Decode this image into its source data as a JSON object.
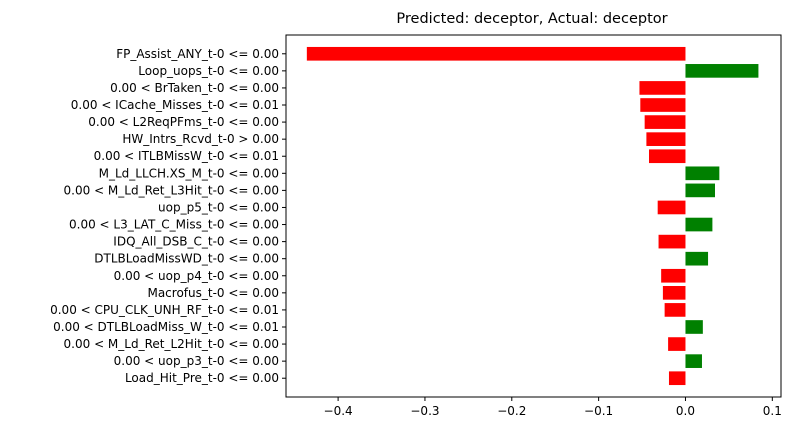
{
  "chart_data": {
    "type": "bar",
    "orientation": "horizontal",
    "title": "Predicted: deceptor, Actual: deceptor",
    "xlabel": "",
    "ylabel": "",
    "xlim": [
      -0.46,
      0.11
    ],
    "xticks": [
      -0.4,
      -0.3,
      -0.2,
      -0.1,
      0.0,
      0.1
    ],
    "xtick_labels": [
      "−0.4",
      "−0.3",
      "−0.2",
      "−0.1",
      "0.0",
      "0.1"
    ],
    "grid": false,
    "colors": {
      "negative": "#ff0000",
      "positive": "#008000"
    },
    "categories": [
      "FP_Assist_ANY_t-0 <= 0.00",
      "Loop_uops_t-0 <= 0.00",
      "0.00 < BrTaken_t-0 <= 0.00",
      "0.00 < ICache_Misses_t-0 <= 0.01",
      "0.00 < L2ReqPFms_t-0 <= 0.00",
      "HW_Intrs_Rcvd_t-0 > 0.00",
      "0.00 < ITLBMissW_t-0 <= 0.01",
      "M_Ld_LLCH.XS_M_t-0 <= 0.00",
      "0.00 < M_Ld_Ret_L3Hit_t-0 <= 0.00",
      "uop_p5_t-0 <= 0.00",
      "0.00 < L3_LAT_C_Miss_t-0 <= 0.00",
      "IDQ_All_DSB_C_t-0 <= 0.00",
      "DTLBLoadMissWD_t-0 <= 0.00",
      "0.00 < uop_p4_t-0 <= 0.00",
      "Macrofus_t-0 <= 0.00",
      "0.00 < CPU_CLK_UNH_RF_t-0 <= 0.01",
      "0.00 < DTLBLoadMiss_W_t-0 <= 0.01",
      "0.00 < M_Ld_Ret_L2Hit_t-0 <= 0.00",
      "0.00 < uop_p3_t-0 <= 0.00",
      "Load_Hit_Pre_t-0 <= 0.00"
    ],
    "values": [
      -0.436,
      0.084,
      -0.053,
      -0.052,
      -0.047,
      -0.045,
      -0.042,
      0.039,
      0.034,
      -0.032,
      0.031,
      -0.031,
      0.026,
      -0.028,
      -0.026,
      -0.024,
      0.02,
      -0.02,
      0.019,
      -0.019
    ]
  }
}
